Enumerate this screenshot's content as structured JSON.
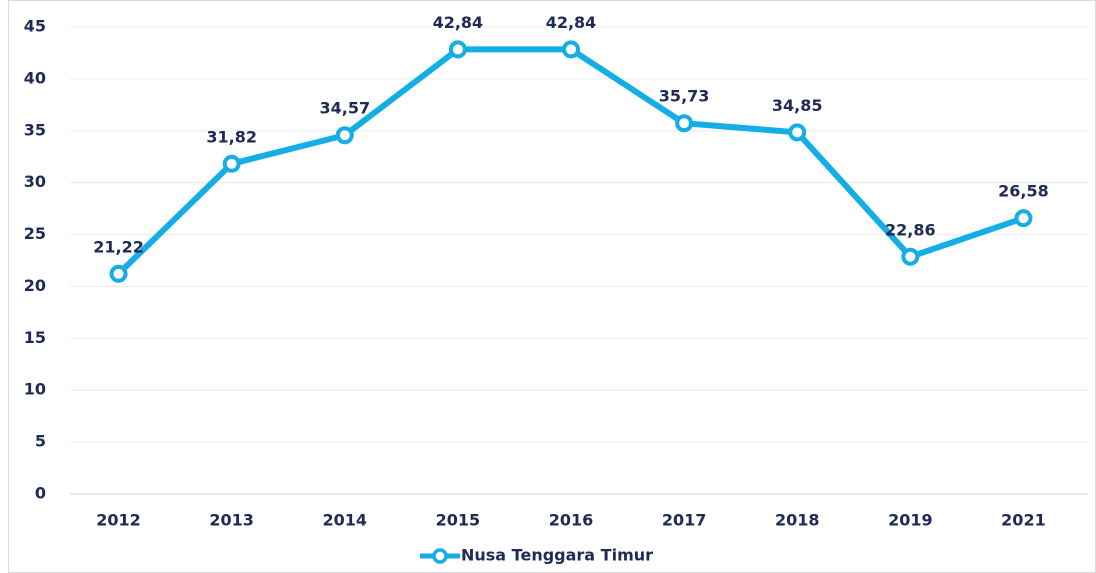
{
  "chart_data": {
    "type": "line",
    "categories": [
      "2012",
      "2013",
      "2014",
      "2015",
      "2016",
      "2017",
      "2018",
      "2019",
      "2021"
    ],
    "series": [
      {
        "name": "Nusa Tenggara Timur",
        "color": "#14ade6",
        "values": [
          21.22,
          31.82,
          34.57,
          42.84,
          42.84,
          35.73,
          34.85,
          22.86,
          26.58
        ],
        "value_labels": [
          "21,22",
          "31,82",
          "34,57",
          "42,84",
          "42,84",
          "35,73",
          "34,85",
          "22,86",
          "26,58"
        ]
      }
    ],
    "ylim": [
      0,
      45
    ],
    "yticks": [
      0,
      5,
      10,
      15,
      20,
      25,
      30,
      35,
      40,
      45
    ],
    "grid": true,
    "legend": "bottom"
  }
}
